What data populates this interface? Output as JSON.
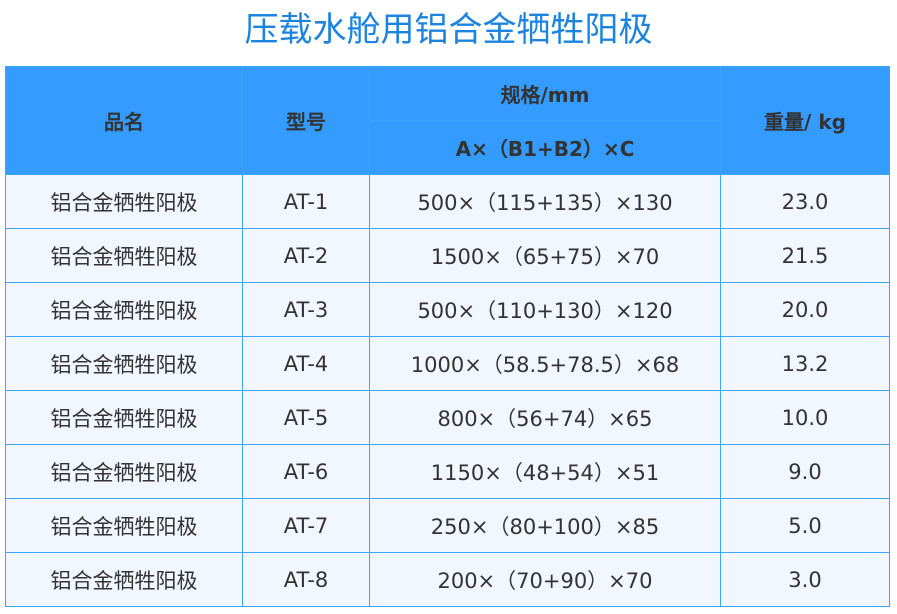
{
  "title": "压载水舱用铝合金牺牲阳极",
  "colors": {
    "header_bg": "#359cff",
    "row_bg": "#f2f6ff",
    "border": "#3aa6f5",
    "title": "#1c84de"
  },
  "headers": {
    "name": "品名",
    "model": "型号",
    "spec": "规格/mm",
    "spec_sub": "A×（B1+B2）×C",
    "weight": "重量/ kg"
  },
  "rows": [
    {
      "name": "铝合金牺牲阳极",
      "model": "AT-1",
      "spec": "500×（115+135）×130",
      "weight": "23.0"
    },
    {
      "name": "铝合金牺牲阳极",
      "model": "AT-2",
      "spec": "1500×（65+75）×70",
      "weight": "21.5"
    },
    {
      "name": "铝合金牺牲阳极",
      "model": "AT-3",
      "spec": "500×（110+130）×120",
      "weight": "20.0"
    },
    {
      "name": "铝合金牺牲阳极",
      "model": "AT-4",
      "spec": "1000×（58.5+78.5）×68",
      "weight": "13.2"
    },
    {
      "name": "铝合金牺牲阳极",
      "model": "AT-5",
      "spec": "800×（56+74）×65",
      "weight": "10.0"
    },
    {
      "name": "铝合金牺牲阳极",
      "model": "AT-6",
      "spec": "1150×（48+54）×51",
      "weight": "9.0"
    },
    {
      "name": "铝合金牺牲阳极",
      "model": "AT-7",
      "spec": "250×（80+100）×85",
      "weight": "5.0"
    },
    {
      "name": "铝合金牺牲阳极",
      "model": "AT-8",
      "spec": "200×（70+90）×70",
      "weight": "3.0"
    }
  ]
}
